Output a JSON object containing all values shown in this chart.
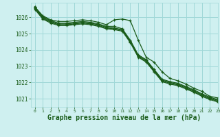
{
  "background_color": "#cff0f0",
  "grid_color": "#a0d8d8",
  "line_color": "#1a5c1a",
  "xlabel": "Graphe pression niveau de la mer (hPa)",
  "xlabel_fontsize": 7,
  "xlim": [
    -0.5,
    23
  ],
  "ylim": [
    1020.5,
    1026.9
  ],
  "yticks": [
    1021,
    1022,
    1023,
    1024,
    1025,
    1026
  ],
  "xticks": [
    0,
    1,
    2,
    3,
    4,
    5,
    6,
    7,
    8,
    9,
    10,
    11,
    12,
    13,
    14,
    15,
    16,
    17,
    18,
    19,
    20,
    21,
    22,
    23
  ],
  "series": [
    [
      1026.65,
      1026.1,
      1025.85,
      1025.75,
      1025.75,
      1025.8,
      1025.85,
      1025.8,
      1025.7,
      1025.55,
      1025.85,
      1025.9,
      1025.8,
      1024.6,
      1023.55,
      1023.25,
      1022.65,
      1022.25,
      1022.1,
      1021.9,
      1021.65,
      1021.45,
      1021.15,
      1021.05
    ],
    [
      1026.65,
      1026.05,
      1025.8,
      1025.65,
      1025.65,
      1025.7,
      1025.75,
      1025.7,
      1025.6,
      1025.45,
      1025.45,
      1025.3,
      1024.6,
      1023.7,
      1023.4,
      1022.8,
      1022.2,
      1022.05,
      1021.95,
      1021.75,
      1021.55,
      1021.3,
      1021.1,
      1020.95
    ],
    [
      1026.6,
      1026.0,
      1025.75,
      1025.6,
      1025.6,
      1025.65,
      1025.7,
      1025.65,
      1025.55,
      1025.4,
      1025.35,
      1025.25,
      1024.55,
      1023.65,
      1023.35,
      1022.75,
      1022.15,
      1022.0,
      1021.9,
      1021.7,
      1021.5,
      1021.25,
      1021.05,
      1020.9
    ],
    [
      1026.55,
      1025.95,
      1025.7,
      1025.55,
      1025.55,
      1025.6,
      1025.65,
      1025.6,
      1025.5,
      1025.35,
      1025.3,
      1025.2,
      1024.5,
      1023.6,
      1023.3,
      1022.7,
      1022.1,
      1021.95,
      1021.85,
      1021.65,
      1021.45,
      1021.2,
      1021.0,
      1020.85
    ],
    [
      1026.5,
      1025.9,
      1025.65,
      1025.5,
      1025.5,
      1025.55,
      1025.6,
      1025.55,
      1025.45,
      1025.3,
      1025.25,
      1025.15,
      1024.45,
      1023.55,
      1023.25,
      1022.65,
      1022.05,
      1021.9,
      1021.8,
      1021.6,
      1021.4,
      1021.15,
      1020.95,
      1020.8
    ]
  ]
}
